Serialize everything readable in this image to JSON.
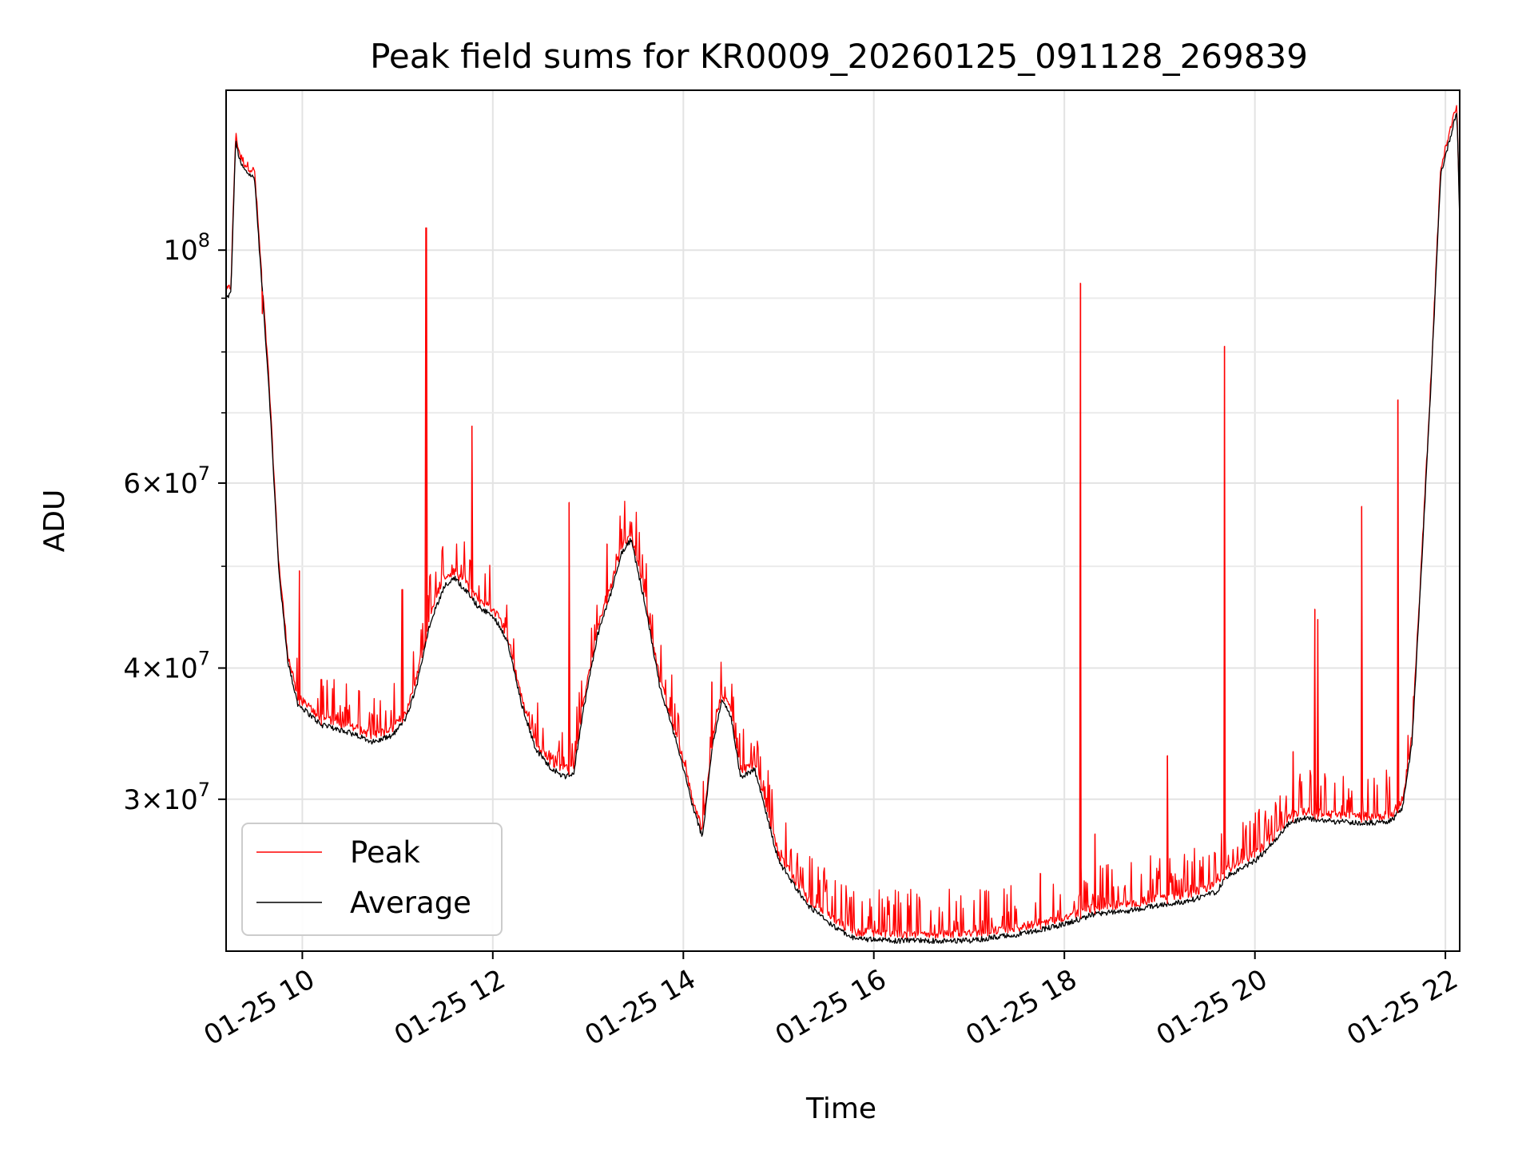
{
  "chart_data": {
    "type": "line",
    "title": "Peak field sums for KR0009_20260125_091128_269839",
    "xlabel": "Time",
    "ylabel": "ADU",
    "yscale": "log",
    "grid": true,
    "legend_position": "lower-left",
    "xlim_hours": [
      9.2,
      22.15
    ],
    "ylim": [
      21500000,
      142000000
    ],
    "x_ticks": [
      {
        "value": 10,
        "label": "01-25 10"
      },
      {
        "value": 12,
        "label": "01-25 12"
      },
      {
        "value": 14,
        "label": "01-25 14"
      },
      {
        "value": 16,
        "label": "01-25 16"
      },
      {
        "value": 18,
        "label": "01-25 18"
      },
      {
        "value": 20,
        "label": "01-25 20"
      },
      {
        "value": 22,
        "label": "01-25 22"
      }
    ],
    "y_ticks": [
      {
        "value": 30000000,
        "mant": "3",
        "exp": "7"
      },
      {
        "value": 40000000,
        "mant": "4",
        "exp": "7"
      },
      {
        "value": 60000000,
        "mant": "6",
        "exp": "7"
      },
      {
        "value": 100000000,
        "mant": "",
        "exp": "8"
      }
    ],
    "y_minor_ticks": [
      50000000,
      70000000,
      80000000,
      90000000
    ],
    "series": [
      {
        "name": "Average",
        "color": "#000000",
        "x": [
          9.2,
          9.25,
          9.3,
          9.35,
          9.4,
          9.5,
          9.55,
          9.65,
          9.75,
          9.85,
          9.95,
          10.2,
          10.5,
          10.75,
          10.95,
          11.1,
          11.2,
          11.35,
          11.5,
          11.6,
          11.75,
          11.85,
          11.95,
          12.05,
          12.15,
          12.3,
          12.45,
          12.6,
          12.75,
          12.85,
          12.95,
          13.1,
          13.25,
          13.35,
          13.45,
          13.6,
          13.75,
          13.95,
          14.1,
          14.2,
          14.3,
          14.4,
          14.5,
          14.6,
          14.75,
          15.0,
          15.3,
          15.6,
          15.8,
          16.2,
          16.5,
          17.0,
          17.5,
          18.0,
          18.3,
          18.7,
          19.0,
          19.3,
          19.6,
          19.7,
          19.85,
          20.0,
          20.2,
          20.35,
          20.5,
          20.65,
          20.8,
          21.0,
          21.2,
          21.35,
          21.45,
          21.55,
          21.65,
          21.75,
          21.85,
          21.95,
          22.05,
          22.12,
          22.15
        ],
        "y": [
          90000000,
          91000000,
          127000000,
          121000000,
          119000000,
          117000000,
          100000000,
          74000000,
          50000000,
          40500000,
          37000000,
          35300000,
          34700000,
          34000000,
          34500000,
          36000000,
          38500000,
          44500000,
          48000000,
          48700000,
          47000000,
          45700000,
          45200000,
          44200000,
          42500000,
          37000000,
          33500000,
          32200000,
          31500000,
          31800000,
          36500000,
          43000000,
          47500000,
          51500000,
          53000000,
          46000000,
          38500000,
          33500000,
          29500000,
          27600000,
          33500000,
          37300000,
          36000000,
          31500000,
          32000000,
          26200000,
          23800000,
          22600000,
          22100000,
          22000000,
          22000000,
          22000000,
          22300000,
          22800000,
          23300000,
          23500000,
          23800000,
          24000000,
          24500000,
          25300000,
          25800000,
          26200000,
          27300000,
          28400000,
          28800000,
          28700000,
          28600000,
          28500000,
          28500000,
          28500000,
          28700000,
          29500000,
          34000000,
          50000000,
          75000000,
          118000000,
          128000000,
          136000000,
          107000000
        ]
      },
      {
        "name": "Peak",
        "color": "#ff0000",
        "spikes": [
          {
            "x": 9.58,
            "y": 87000000
          },
          {
            "x": 9.97,
            "y": 49500000
          },
          {
            "x": 10.2,
            "y": 39000000
          },
          {
            "x": 11.05,
            "y": 47500000
          },
          {
            "x": 11.3,
            "y": 105000000
          },
          {
            "x": 11.78,
            "y": 68000000
          },
          {
            "x": 12.8,
            "y": 57500000
          },
          {
            "x": 13.2,
            "y": 52500000
          },
          {
            "x": 14.3,
            "y": 38800000
          },
          {
            "x": 17.75,
            "y": 25500000
          },
          {
            "x": 18.17,
            "y": 93000000
          },
          {
            "x": 18.32,
            "y": 27800000
          },
          {
            "x": 19.08,
            "y": 33000000
          },
          {
            "x": 19.68,
            "y": 81000000
          },
          {
            "x": 20.4,
            "y": 33300000
          },
          {
            "x": 20.63,
            "y": 45500000
          },
          {
            "x": 20.66,
            "y": 44500000
          },
          {
            "x": 21.12,
            "y": 57000000
          },
          {
            "x": 21.5,
            "y": 72000000
          }
        ]
      }
    ],
    "legend": [
      {
        "label": "Peak",
        "color": "#ff0000"
      },
      {
        "label": "Average",
        "color": "#000000"
      }
    ]
  }
}
